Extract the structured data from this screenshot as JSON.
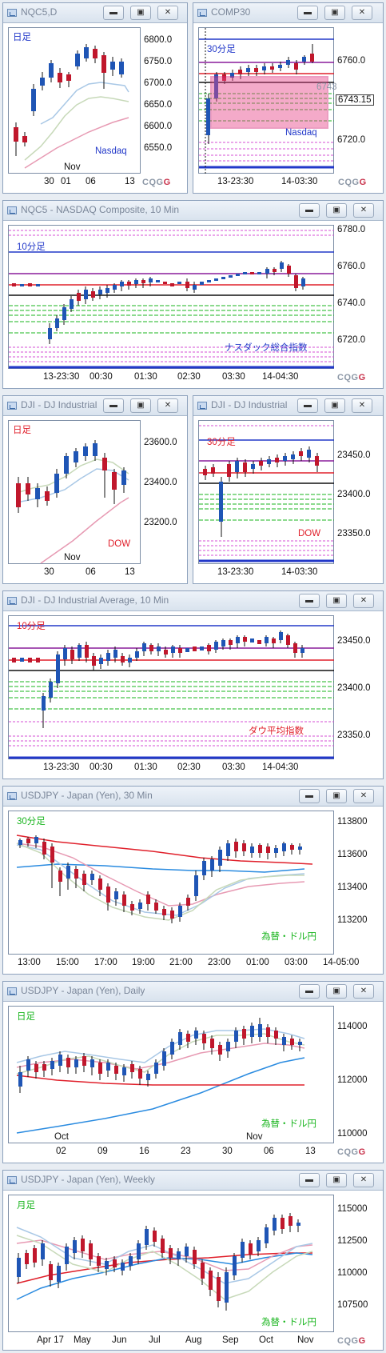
{
  "colors": {
    "up": "#1f55b5",
    "down": "#c0172c",
    "blue": "#2238c9",
    "purple": "#8a1d9c",
    "red": "#e0202b",
    "green": "#19b51e",
    "pink": "#d64fd6",
    "black": "#111",
    "ma1": "#a9c8e6",
    "ma2": "#c7d9b9",
    "ma3": "#e79ab3",
    "ma4": "#2a8be0",
    "ma5": "#e0202b"
  },
  "buttons": {
    "minimize": "▬",
    "restore": "▣",
    "close": "✕"
  },
  "logo": {
    "left": "CQG",
    "right": "G"
  },
  "panels": [
    {
      "id": "nqc5d",
      "title": "NQC5,D",
      "label": "日足",
      "label_color": "#2238c9",
      "note": "Nasdaq",
      "note_color": "#2238c9",
      "yticks": [
        "6800.0",
        "6750.0",
        "6700.0",
        "6650.0",
        "6600.0",
        "6550.0"
      ],
      "xticks": [
        "30",
        "01",
        "06",
        "13"
      ],
      "xtop": "Nov",
      "bars": [
        [
          8,
          9,
          55,
          70
        ],
        [
          22,
          24,
          135,
          145
        ],
        [
          44,
          46,
          105,
          112
        ],
        [
          53,
          54,
          92,
          100
        ],
        [
          63,
          66,
          80,
          97
        ],
        [
          73,
          76,
          68,
          86
        ],
        [
          84,
          85,
          50,
          62
        ],
        [
          94,
          93,
          60,
          38
        ],
        [
          102,
          106,
          80,
          46
        ],
        [
          108,
          100,
          65,
          52
        ],
        [
          117,
          112,
          64,
          88
        ],
        [
          127,
          122,
          70,
          70
        ],
        [
          138,
          134,
          60,
          72
        ],
        [
          148,
          134,
          32,
          25
        ]
      ]
    },
    {
      "id": "comp30",
      "title": "COMP30",
      "label": "30分足",
      "label_color": "#2238c9",
      "note": "Nasdaq",
      "note_color": "#2238c9",
      "yticks": [
        "6760.0",
        "6743.15",
        "6720.0"
      ],
      "yticks_gray": "6743",
      "xticks": [
        "13-23:30",
        "14-03:30"
      ]
    },
    {
      "id": "comp10",
      "title": "NQC5 - NASDAQ Composite, 10 Min",
      "label": "10分足",
      "label_color": "#2238c9",
      "note": "ナスダック総合指数",
      "note_color": "#2238c9",
      "yticks": [
        "6780.0",
        "6760.0",
        "6740.0",
        "6720.0"
      ],
      "xticks": [
        "13-23:30",
        "00:30",
        "01:30",
        "02:30",
        "03:30",
        "14-04:30"
      ]
    },
    {
      "id": "djid",
      "title": "DJI - DJ Industrial",
      "label": "日足",
      "label_color": "#e0202b",
      "note": "DOW",
      "note_color": "#e0202b",
      "yticks": [
        "23600.0",
        "23400.0",
        "23200.0"
      ],
      "xticks": [
        "30",
        "06",
        "13"
      ],
      "xtop": "Nov"
    },
    {
      "id": "dji30",
      "title": "DJI - DJ Industrial",
      "label": "30分足",
      "label_color": "#e0202b",
      "note": "DOW",
      "note_color": "#e0202b",
      "yticks": [
        "23450.0",
        "23400.0",
        "23350.0"
      ],
      "xticks": [
        "13-23:30",
        "14-03:30"
      ]
    },
    {
      "id": "dji10",
      "title": "DJI - DJ Industrial Average, 10 Min",
      "label": "10分足",
      "label_color": "#e0202b",
      "note": "ダウ平均指数",
      "note_color": "#e0202b",
      "yticks": [
        "23450.0",
        "23400.0",
        "23350.0"
      ],
      "xticks": [
        "13-23:30",
        "00:30",
        "01:30",
        "02:30",
        "03:30",
        "14-04:30"
      ]
    },
    {
      "id": "usdjpy30",
      "title": "USDJPY - Japan (Yen), 30 Min",
      "label": "30分足",
      "label_color": "#19b51e",
      "note": "為替・ドル円",
      "note_color": "#19b51e",
      "yticks": [
        "113800",
        "113600",
        "113400",
        "113200"
      ],
      "xticks": [
        "13:00",
        "15:00",
        "17:00",
        "19:00",
        "21:00",
        "23:00",
        "01:00",
        "03:00",
        "14-05:00"
      ]
    },
    {
      "id": "usdjpyd",
      "title": "USDJPY - Japan (Yen), Daily",
      "label": "日足",
      "label_color": "#19b51e",
      "note": "為替・ドル円",
      "note_color": "#19b51e",
      "yticks": [
        "114000",
        "112000",
        "110000"
      ],
      "xticks": [
        "02",
        "09",
        "16",
        "23",
        "30",
        "06",
        "13"
      ],
      "xtop_left": "Oct",
      "xtop": "Nov"
    },
    {
      "id": "usdjpyw",
      "title": "USDJPY - Japan (Yen), Weekly",
      "label": "月足",
      "label_color": "#19b51e",
      "note": "為替・ドル円",
      "note_color": "#19b51e",
      "yticks": [
        "115000",
        "112500",
        "110000",
        "107500"
      ],
      "xticks": [
        "Apr 17",
        "May",
        "Jun",
        "Jul",
        "Aug",
        "Sep",
        "Oct",
        "Nov"
      ]
    }
  ]
}
